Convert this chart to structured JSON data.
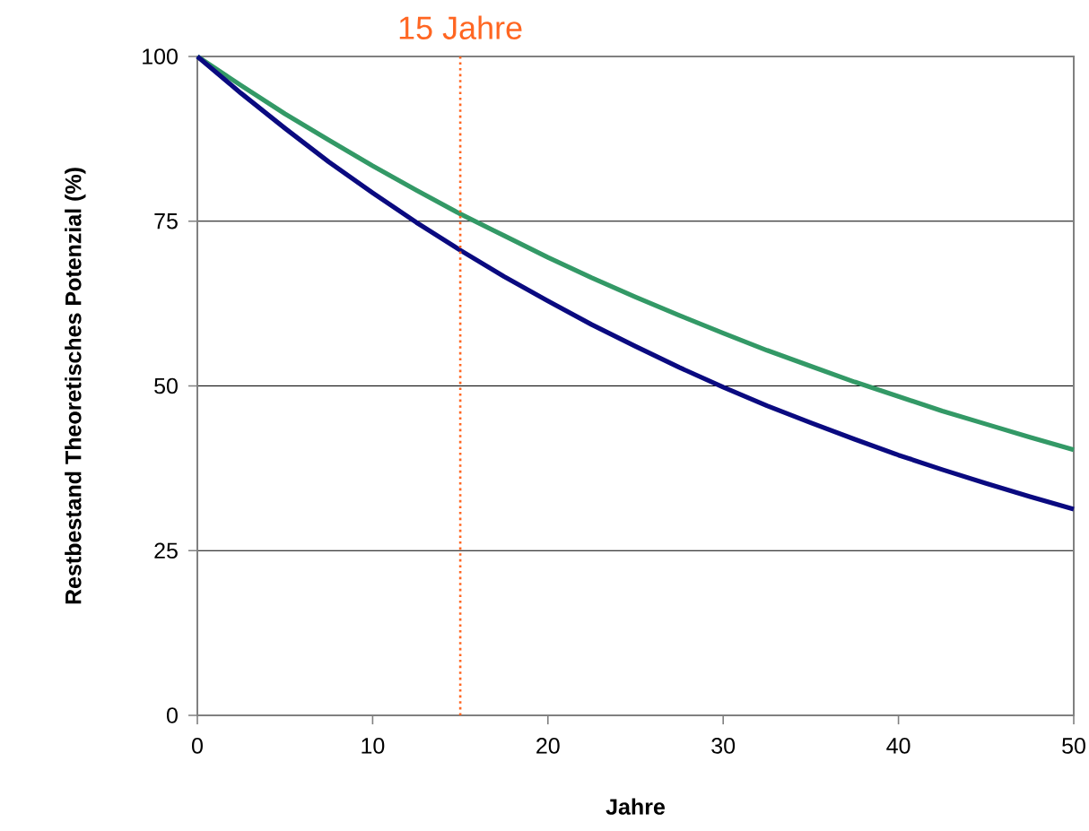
{
  "chart_data": {
    "type": "line",
    "xlabel": "Jahre",
    "ylabel": "Restbestand Theoretisches Potenzial (%)",
    "x": [
      0,
      2.5,
      5,
      7.5,
      10,
      12.5,
      15,
      17.5,
      20,
      22.5,
      25,
      27.5,
      30,
      32.5,
      35,
      37.5,
      40,
      42.5,
      45,
      47.5,
      50
    ],
    "series": [
      {
        "color": "#339966",
        "values": [
          100,
          95.6,
          91.3,
          87.3,
          83.4,
          79.7,
          76.1,
          72.8,
          69.5,
          66.4,
          63.5,
          60.7,
          58.0,
          55.4,
          53.0,
          50.6,
          48.4,
          46.2,
          44.2,
          42.2,
          40.3
        ]
      },
      {
        "color": "#0a0a80",
        "values": [
          100,
          94.4,
          89.1,
          84.0,
          79.3,
          74.8,
          70.6,
          66.6,
          62.9,
          59.3,
          56.0,
          52.8,
          49.8,
          47.0,
          44.4,
          41.9,
          39.5,
          37.3,
          35.2,
          33.2,
          31.3
        ]
      }
    ],
    "xlim": [
      0,
      50
    ],
    "xticks": [
      0,
      10,
      20,
      30,
      40,
      50
    ],
    "ylim": [
      0,
      100
    ],
    "yticks": [
      0,
      25,
      50,
      75,
      100
    ],
    "grid": "y",
    "marker": "none",
    "line_style": "solid",
    "ref_lines": [
      {
        "axis": "x",
        "value": 15,
        "label": "15 Jahre",
        "color": "#ff6622",
        "line_style": "dotted"
      }
    ]
  }
}
